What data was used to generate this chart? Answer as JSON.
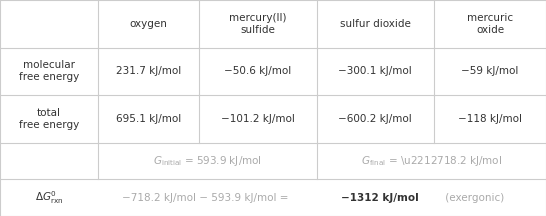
{
  "col_headers": [
    "oxygen",
    "mercury(II)\nsulfide",
    "sulfur dioxide",
    "mercuric\noxide"
  ],
  "row_headers": [
    "molecular\nfree energy",
    "total\nfree energy",
    "",
    "ΔG°ᵣᵤⁿ"
  ],
  "cell_data": [
    [
      "231.7 kJ/mol",
      "−50.6 kJ/mol",
      "−300.1 kJ/mol",
      "−59 kJ/mol"
    ],
    [
      "695.1 kJ/mol",
      "−101.2 kJ/mol",
      "−600.2 kJ/mol",
      "−118 kJ/mol"
    ],
    [
      "G_initial = 593.9 kJ/mol",
      "",
      "G_final = −718.2 kJ/mol",
      ""
    ],
    [
      "−718.2 kJ/mol − 593.9 kJ/mol = ",
      "−1312 kJ/mol",
      "(exergonic)",
      ""
    ]
  ],
  "bg_color": "#ffffff",
  "line_color": "#cccccc",
  "text_color": "#333333",
  "figsize": [
    5.46,
    2.16
  ],
  "dpi": 100
}
